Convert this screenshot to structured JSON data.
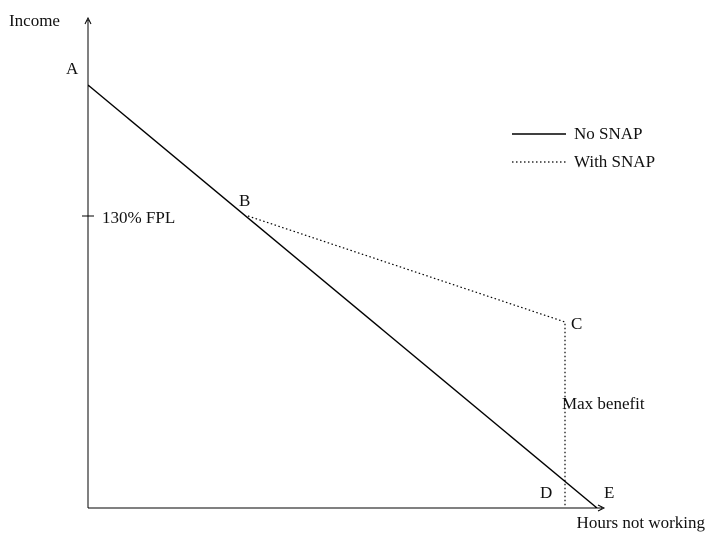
{
  "axes": {
    "y_label": "Income",
    "x_label": "Hours not working"
  },
  "points": [
    "A",
    "B",
    "C",
    "D",
    "E"
  ],
  "annotations": {
    "fpl": "130% FPL",
    "max_benefit": "Max benefit"
  },
  "legend": [
    "No SNAP",
    "With SNAP"
  ]
}
